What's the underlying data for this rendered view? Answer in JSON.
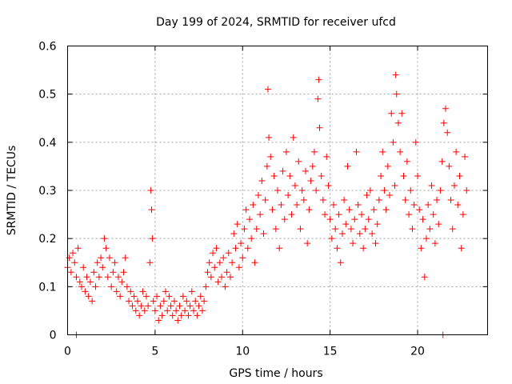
{
  "chart_data": {
    "type": "scatter",
    "title": "Day 199 of 2024, SRMTID for receiver ufcd",
    "xlabel": "GPS time / hours",
    "ylabel": "SRMTID / TECUs",
    "xlim": [
      0,
      24
    ],
    "ylim": [
      0,
      0.6
    ],
    "xticks": [
      0,
      5,
      10,
      15,
      20
    ],
    "xtick_labels": [
      "0",
      "5",
      "10",
      "15",
      "20"
    ],
    "yticks": [
      0,
      0.1,
      0.2,
      0.3,
      0.4,
      0.5,
      0.6
    ],
    "ytick_labels": [
      "0",
      "0.1",
      "0.2",
      "0.3",
      "0.4",
      "0.5",
      "0.6"
    ],
    "grid": true,
    "marker": "plus",
    "color": "#ff0000",
    "series": [
      {
        "name": "SRMTID",
        "points": [
          [
            0.0,
            0.14
          ],
          [
            0.1,
            0.16
          ],
          [
            0.2,
            0.13
          ],
          [
            0.3,
            0.17
          ],
          [
            0.4,
            0.15
          ],
          [
            0.5,
            0.12
          ],
          [
            0.5,
            0.0
          ],
          [
            0.6,
            0.18
          ],
          [
            0.7,
            0.11
          ],
          [
            0.8,
            0.1
          ],
          [
            0.9,
            0.14
          ],
          [
            1.0,
            0.09
          ],
          [
            1.1,
            0.12
          ],
          [
            1.2,
            0.08
          ],
          [
            1.3,
            0.11
          ],
          [
            1.4,
            0.07
          ],
          [
            1.5,
            0.13
          ],
          [
            1.6,
            0.1
          ],
          [
            1.7,
            0.15
          ],
          [
            1.8,
            0.12
          ],
          [
            1.9,
            0.16
          ],
          [
            2.0,
            0.14
          ],
          [
            2.1,
            0.2
          ],
          [
            2.2,
            0.18
          ],
          [
            2.3,
            0.12
          ],
          [
            2.4,
            0.16
          ],
          [
            2.5,
            0.1
          ],
          [
            2.6,
            0.13
          ],
          [
            2.7,
            0.15
          ],
          [
            2.8,
            0.09
          ],
          [
            2.9,
            0.12
          ],
          [
            3.0,
            0.08
          ],
          [
            3.1,
            0.11
          ],
          [
            3.2,
            0.13
          ],
          [
            3.3,
            0.16
          ],
          [
            3.4,
            0.1
          ],
          [
            3.5,
            0.07
          ],
          [
            3.6,
            0.09
          ],
          [
            3.7,
            0.06
          ],
          [
            3.8,
            0.08
          ],
          [
            3.9,
            0.05
          ],
          [
            4.0,
            0.07
          ],
          [
            4.1,
            0.04
          ],
          [
            4.2,
            0.06
          ],
          [
            4.3,
            0.09
          ],
          [
            4.4,
            0.05
          ],
          [
            4.5,
            0.08
          ],
          [
            4.6,
            0.06
          ],
          [
            4.7,
            0.15
          ],
          [
            4.75,
            0.3
          ],
          [
            4.8,
            0.26
          ],
          [
            4.85,
            0.2
          ],
          [
            4.9,
            0.07
          ],
          [
            5.0,
            0.05
          ],
          [
            5.1,
            0.08
          ],
          [
            5.2,
            0.03
          ],
          [
            5.3,
            0.06
          ],
          [
            5.4,
            0.04
          ],
          [
            5.5,
            0.07
          ],
          [
            5.6,
            0.09
          ],
          [
            5.7,
            0.05
          ],
          [
            5.8,
            0.08
          ],
          [
            5.9,
            0.06
          ],
          [
            6.0,
            0.04
          ],
          [
            6.1,
            0.07
          ],
          [
            6.2,
            0.05
          ],
          [
            6.3,
            0.03
          ],
          [
            6.4,
            0.06
          ],
          [
            6.5,
            0.04
          ],
          [
            6.6,
            0.08
          ],
          [
            6.7,
            0.05
          ],
          [
            6.8,
            0.07
          ],
          [
            6.9,
            0.04
          ],
          [
            7.0,
            0.06
          ],
          [
            7.1,
            0.09
          ],
          [
            7.2,
            0.05
          ],
          [
            7.3,
            0.07
          ],
          [
            7.4,
            0.04
          ],
          [
            7.5,
            0.06
          ],
          [
            7.6,
            0.08
          ],
          [
            7.7,
            0.05
          ],
          [
            7.8,
            0.07
          ],
          [
            7.9,
            0.1
          ],
          [
            8.0,
            0.13
          ],
          [
            8.1,
            0.15
          ],
          [
            8.2,
            0.12
          ],
          [
            8.3,
            0.17
          ],
          [
            8.4,
            0.14
          ],
          [
            8.5,
            0.18
          ],
          [
            8.6,
            0.11
          ],
          [
            8.7,
            0.15
          ],
          [
            8.8,
            0.12
          ],
          [
            8.9,
            0.16
          ],
          [
            9.0,
            0.1
          ],
          [
            9.1,
            0.13
          ],
          [
            9.2,
            0.17
          ],
          [
            9.3,
            0.12
          ],
          [
            9.4,
            0.15
          ],
          [
            9.5,
            0.21
          ],
          [
            9.6,
            0.18
          ],
          [
            9.7,
            0.23
          ],
          [
            9.8,
            0.14
          ],
          [
            9.9,
            0.19
          ],
          [
            10.0,
            0.16
          ],
          [
            10.1,
            0.22
          ],
          [
            10.2,
            0.26
          ],
          [
            10.3,
            0.18
          ],
          [
            10.4,
            0.24
          ],
          [
            10.5,
            0.2
          ],
          [
            10.6,
            0.27
          ],
          [
            10.7,
            0.15
          ],
          [
            10.8,
            0.22
          ],
          [
            10.9,
            0.29
          ],
          [
            11.0,
            0.25
          ],
          [
            11.1,
            0.32
          ],
          [
            11.2,
            0.21
          ],
          [
            11.3,
            0.28
          ],
          [
            11.4,
            0.35
          ],
          [
            11.45,
            0.51
          ],
          [
            11.5,
            0.41
          ],
          [
            11.6,
            0.37
          ],
          [
            11.7,
            0.26
          ],
          [
            11.8,
            0.33
          ],
          [
            11.9,
            0.22
          ],
          [
            12.0,
            0.3
          ],
          [
            12.1,
            0.18
          ],
          [
            12.2,
            0.27
          ],
          [
            12.3,
            0.34
          ],
          [
            12.4,
            0.24
          ],
          [
            12.5,
            0.38
          ],
          [
            12.6,
            0.29
          ],
          [
            12.7,
            0.33
          ],
          [
            12.8,
            0.25
          ],
          [
            12.9,
            0.41
          ],
          [
            13.0,
            0.31
          ],
          [
            13.1,
            0.27
          ],
          [
            13.2,
            0.36
          ],
          [
            13.3,
            0.22
          ],
          [
            13.4,
            0.3
          ],
          [
            13.5,
            0.28
          ],
          [
            13.6,
            0.34
          ],
          [
            13.7,
            0.19
          ],
          [
            13.8,
            0.26
          ],
          [
            13.9,
            0.32
          ],
          [
            14.0,
            0.35
          ],
          [
            14.1,
            0.38
          ],
          [
            14.2,
            0.3
          ],
          [
            14.3,
            0.49
          ],
          [
            14.35,
            0.53
          ],
          [
            14.4,
            0.43
          ],
          [
            14.5,
            0.33
          ],
          [
            14.6,
            0.28
          ],
          [
            14.7,
            0.25
          ],
          [
            14.8,
            0.37
          ],
          [
            14.9,
            0.31
          ],
          [
            15.0,
            0.24
          ],
          [
            15.1,
            0.2
          ],
          [
            15.2,
            0.27
          ],
          [
            15.3,
            0.22
          ],
          [
            15.4,
            0.18
          ],
          [
            15.5,
            0.25
          ],
          [
            15.6,
            0.15
          ],
          [
            15.7,
            0.21
          ],
          [
            15.8,
            0.28
          ],
          [
            15.9,
            0.23
          ],
          [
            16.0,
            0.35
          ],
          [
            16.1,
            0.26
          ],
          [
            16.2,
            0.22
          ],
          [
            16.3,
            0.19
          ],
          [
            16.4,
            0.24
          ],
          [
            16.5,
            0.38
          ],
          [
            16.6,
            0.27
          ],
          [
            16.7,
            0.21
          ],
          [
            16.8,
            0.25
          ],
          [
            16.9,
            0.18
          ],
          [
            17.0,
            0.22
          ],
          [
            17.1,
            0.29
          ],
          [
            17.2,
            0.24
          ],
          [
            17.3,
            0.3
          ],
          [
            17.4,
            0.21
          ],
          [
            17.5,
            0.26
          ],
          [
            17.6,
            0.19
          ],
          [
            17.7,
            0.23
          ],
          [
            17.8,
            0.28
          ],
          [
            17.9,
            0.33
          ],
          [
            18.0,
            0.38
          ],
          [
            18.1,
            0.3
          ],
          [
            18.2,
            0.26
          ],
          [
            18.3,
            0.35
          ],
          [
            18.4,
            0.29
          ],
          [
            18.5,
            0.46
          ],
          [
            18.6,
            0.4
          ],
          [
            18.7,
            0.31
          ],
          [
            18.75,
            0.54
          ],
          [
            18.8,
            0.5
          ],
          [
            18.9,
            0.44
          ],
          [
            19.0,
            0.38
          ],
          [
            19.1,
            0.46
          ],
          [
            19.2,
            0.33
          ],
          [
            19.3,
            0.28
          ],
          [
            19.4,
            0.36
          ],
          [
            19.5,
            0.25
          ],
          [
            19.6,
            0.3
          ],
          [
            19.7,
            0.22
          ],
          [
            19.8,
            0.27
          ],
          [
            19.9,
            0.4
          ],
          [
            20.0,
            0.33
          ],
          [
            20.1,
            0.26
          ],
          [
            20.2,
            0.18
          ],
          [
            20.3,
            0.24
          ],
          [
            20.4,
            0.12
          ],
          [
            20.5,
            0.2
          ],
          [
            20.6,
            0.27
          ],
          [
            20.7,
            0.22
          ],
          [
            20.8,
            0.31
          ],
          [
            20.9,
            0.25
          ],
          [
            21.0,
            0.19
          ],
          [
            21.1,
            0.28
          ],
          [
            21.2,
            0.23
          ],
          [
            21.3,
            0.3
          ],
          [
            21.4,
            0.36
          ],
          [
            21.45,
            0.0
          ],
          [
            21.5,
            0.44
          ],
          [
            21.6,
            0.47
          ],
          [
            21.7,
            0.42
          ],
          [
            21.8,
            0.35
          ],
          [
            21.9,
            0.28
          ],
          [
            22.0,
            0.22
          ],
          [
            22.1,
            0.31
          ],
          [
            22.2,
            0.38
          ],
          [
            22.3,
            0.27
          ],
          [
            22.4,
            0.33
          ],
          [
            22.5,
            0.18
          ],
          [
            22.6,
            0.25
          ],
          [
            22.7,
            0.37
          ],
          [
            22.8,
            0.3
          ]
        ]
      }
    ]
  }
}
